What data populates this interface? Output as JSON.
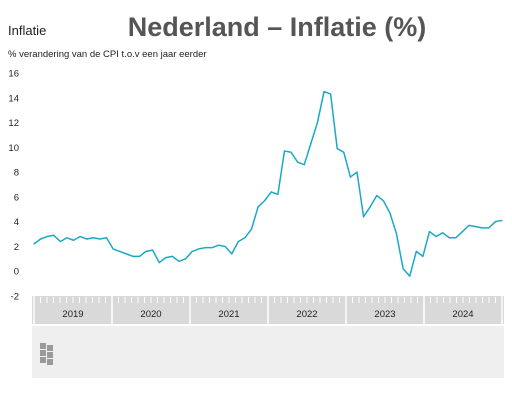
{
  "header": {
    "label": "Inflatie",
    "title": "Nederland – Inflatie (%)",
    "subtitle": "% verandering van de CPI t.o.v een jaar eerder"
  },
  "logo_text": "cbs",
  "colors": {
    "line": "#1ba8c6",
    "axis_band": "#d9d9d9",
    "grid": "#ffffff"
  },
  "chart_data": {
    "type": "line",
    "title": "Nederland – Inflatie (%)",
    "ylabel": "% verandering van de CPI t.o.v een jaar eerder",
    "ylim": [
      -2,
      16
    ],
    "yticks": [
      -2,
      0,
      2,
      4,
      6,
      8,
      10,
      12,
      14,
      16
    ],
    "x_range": [
      "2019-01",
      "2024-12"
    ],
    "x_labels": [
      "2019",
      "2020",
      "2021",
      "2022",
      "2023",
      "2024"
    ],
    "grid": false,
    "series": [
      {
        "x": [
          "2019-01",
          "2019-02",
          "2019-03",
          "2019-04",
          "2019-05",
          "2019-06",
          "2019-07",
          "2019-08",
          "2019-09",
          "2019-10",
          "2019-11",
          "2019-12",
          "2020-01",
          "2020-02",
          "2020-03",
          "2020-04",
          "2020-05",
          "2020-06",
          "2020-07",
          "2020-08",
          "2020-09",
          "2020-10",
          "2020-11",
          "2020-12",
          "2021-01",
          "2021-02",
          "2021-03",
          "2021-04",
          "2021-05",
          "2021-06",
          "2021-07",
          "2021-08",
          "2021-09",
          "2021-10",
          "2021-11",
          "2021-12",
          "2022-01",
          "2022-02",
          "2022-03",
          "2022-04",
          "2022-05",
          "2022-06",
          "2022-07",
          "2022-08",
          "2022-09",
          "2022-10",
          "2022-11",
          "2022-12",
          "2023-01",
          "2023-02",
          "2023-03",
          "2023-04",
          "2023-05",
          "2023-06",
          "2023-07",
          "2023-08",
          "2023-09",
          "2023-10",
          "2023-11",
          "2023-12",
          "2024-01",
          "2024-02",
          "2024-03",
          "2024-04",
          "2024-05",
          "2024-06",
          "2024-07",
          "2024-08",
          "2024-09",
          "2024-10",
          "2024-11",
          "2024-12"
        ],
        "values": [
          2.2,
          2.6,
          2.8,
          2.9,
          2.4,
          2.7,
          2.5,
          2.8,
          2.6,
          2.7,
          2.6,
          2.7,
          1.8,
          1.6,
          1.4,
          1.2,
          1.2,
          1.6,
          1.7,
          0.7,
          1.1,
          1.2,
          0.8,
          1.0,
          1.6,
          1.8,
          1.9,
          1.9,
          2.1,
          2.0,
          1.4,
          2.4,
          2.7,
          3.4,
          5.2,
          5.7,
          6.4,
          6.2,
          9.7,
          9.6,
          8.8,
          8.6,
          10.3,
          12.0,
          14.5,
          14.3,
          9.9,
          9.6,
          7.6,
          8.0,
          4.4,
          5.2,
          6.1,
          5.7,
          4.7,
          3.0,
          0.2,
          -0.4,
          1.6,
          1.2,
          3.2,
          2.8,
          3.1,
          2.7,
          2.7,
          3.2,
          3.7,
          3.6,
          3.5,
          3.5,
          4.0,
          4.1
        ]
      }
    ]
  }
}
